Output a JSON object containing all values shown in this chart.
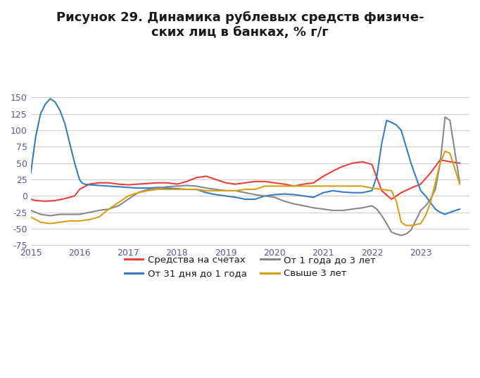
{
  "title": "Рисунок 29. Динамика рублевых средств физиче-\nских лиц в банках, % г/г",
  "ylim": [
    -75,
    150
  ],
  "yticks": [
    -75,
    -50,
    -25,
    0,
    25,
    50,
    75,
    100,
    125,
    150
  ],
  "xlim": [
    2015.0,
    2024.0
  ],
  "xticks": [
    2015,
    2016,
    2017,
    2018,
    2019,
    2020,
    2021,
    2022,
    2023
  ],
  "background_color": "#ffffff",
  "grid_color": "#cccccc",
  "series": {
    "accounts": {
      "label": "Средства на счетах",
      "color": "#e8403a",
      "x": [
        2015.0,
        2015.1,
        2015.3,
        2015.5,
        2015.7,
        2015.9,
        2016.0,
        2016.2,
        2016.4,
        2016.6,
        2016.8,
        2017.0,
        2017.2,
        2017.4,
        2017.6,
        2017.8,
        2018.0,
        2018.2,
        2018.4,
        2018.6,
        2018.8,
        2019.0,
        2019.2,
        2019.4,
        2019.6,
        2019.8,
        2020.0,
        2020.2,
        2020.4,
        2020.6,
        2020.8,
        2021.0,
        2021.2,
        2021.4,
        2021.6,
        2021.8,
        2022.0,
        2022.2,
        2022.4,
        2022.6,
        2022.8,
        2023.0,
        2023.2,
        2023.4,
        2023.6,
        2023.8
      ],
      "y": [
        -5,
        -7,
        -8,
        -7,
        -4,
        0,
        10,
        18,
        20,
        20,
        18,
        17,
        18,
        19,
        20,
        20,
        18,
        22,
        28,
        30,
        25,
        20,
        18,
        20,
        22,
        22,
        20,
        18,
        15,
        18,
        20,
        30,
        38,
        45,
        50,
        52,
        48,
        8,
        -5,
        5,
        12,
        18,
        35,
        55,
        52,
        50
      ]
    },
    "short": {
      "label": "От 31 дня до 1 года",
      "color": "#3a7abf",
      "x": [
        2015.0,
        2015.1,
        2015.2,
        2015.3,
        2015.4,
        2015.5,
        2015.6,
        2015.7,
        2015.8,
        2015.9,
        2016.0,
        2016.05,
        2016.1,
        2016.2,
        2016.4,
        2016.6,
        2016.8,
        2017.0,
        2017.2,
        2017.4,
        2017.6,
        2017.8,
        2018.0,
        2018.2,
        2018.4,
        2018.6,
        2018.8,
        2019.0,
        2019.2,
        2019.4,
        2019.6,
        2019.8,
        2020.0,
        2020.2,
        2020.4,
        2020.6,
        2020.8,
        2021.0,
        2021.2,
        2021.4,
        2021.6,
        2021.8,
        2022.0,
        2022.1,
        2022.2,
        2022.3,
        2022.4,
        2022.5,
        2022.6,
        2022.8,
        2023.0,
        2023.1,
        2023.2,
        2023.3,
        2023.4,
        2023.5,
        2023.6,
        2023.8
      ],
      "y": [
        35,
        90,
        125,
        140,
        148,
        143,
        130,
        110,
        80,
        50,
        25,
        20,
        18,
        17,
        16,
        15,
        14,
        13,
        12,
        12,
        13,
        12,
        11,
        10,
        10,
        5,
        2,
        0,
        -2,
        -5,
        -5,
        0,
        2,
        3,
        2,
        0,
        -2,
        5,
        8,
        6,
        5,
        5,
        8,
        30,
        80,
        115,
        112,
        108,
        100,
        50,
        8,
        0,
        -10,
        -20,
        -25,
        -28,
        -25,
        -20
      ]
    },
    "medium": {
      "label": "От 1 года до 3 лет",
      "color": "#888888",
      "x": [
        2015.0,
        2015.2,
        2015.4,
        2015.6,
        2015.8,
        2016.0,
        2016.2,
        2016.4,
        2016.6,
        2016.8,
        2017.0,
        2017.2,
        2017.4,
        2017.6,
        2017.8,
        2018.0,
        2018.2,
        2018.4,
        2018.6,
        2018.8,
        2019.0,
        2019.2,
        2019.4,
        2019.6,
        2019.8,
        2020.0,
        2020.2,
        2020.4,
        2020.6,
        2020.8,
        2021.0,
        2021.2,
        2021.4,
        2021.6,
        2021.8,
        2022.0,
        2022.1,
        2022.2,
        2022.3,
        2022.4,
        2022.5,
        2022.6,
        2022.7,
        2022.8,
        2023.0,
        2023.1,
        2023.2,
        2023.3,
        2023.4,
        2023.5,
        2023.6,
        2023.8
      ],
      "y": [
        -22,
        -28,
        -30,
        -28,
        -28,
        -28,
        -25,
        -22,
        -20,
        -15,
        -5,
        5,
        10,
        12,
        14,
        15,
        16,
        15,
        12,
        10,
        8,
        8,
        5,
        2,
        0,
        -2,
        -8,
        -12,
        -15,
        -18,
        -20,
        -22,
        -22,
        -20,
        -18,
        -15,
        -20,
        -30,
        -42,
        -55,
        -58,
        -60,
        -58,
        -52,
        -22,
        -15,
        -5,
        10,
        50,
        120,
        115,
        20
      ]
    },
    "long": {
      "label": "Свыше 3 лет",
      "color": "#d4a017",
      "x": [
        2015.0,
        2015.2,
        2015.4,
        2015.6,
        2015.8,
        2016.0,
        2016.2,
        2016.4,
        2016.6,
        2016.8,
        2017.0,
        2017.2,
        2017.4,
        2017.6,
        2017.8,
        2018.0,
        2018.2,
        2018.4,
        2018.6,
        2018.8,
        2019.0,
        2019.2,
        2019.4,
        2019.6,
        2019.8,
        2020.0,
        2020.2,
        2020.4,
        2020.6,
        2020.8,
        2021.0,
        2021.2,
        2021.4,
        2021.6,
        2021.8,
        2022.0,
        2022.2,
        2022.4,
        2022.5,
        2022.6,
        2022.7,
        2022.8,
        2023.0,
        2023.1,
        2023.2,
        2023.3,
        2023.4,
        2023.5,
        2023.6,
        2023.8
      ],
      "y": [
        -32,
        -40,
        -42,
        -40,
        -38,
        -38,
        -36,
        -32,
        -20,
        -10,
        0,
        5,
        8,
        10,
        10,
        10,
        10,
        10,
        8,
        8,
        8,
        8,
        10,
        10,
        15,
        15,
        15,
        15,
        15,
        15,
        15,
        15,
        15,
        15,
        15,
        12,
        10,
        8,
        -8,
        -40,
        -45,
        -45,
        -42,
        -30,
        -10,
        20,
        50,
        68,
        65,
        18
      ]
    }
  },
  "legend": [
    {
      "label": "Средства на счетах",
      "color": "#e8403a"
    },
    {
      "label": "От 31 дня до 1 года",
      "color": "#3a7abf"
    },
    {
      "label": "От 1 года до 3 лет",
      "color": "#888888"
    },
    {
      "label": "Свыше 3 лет",
      "color": "#d4a017"
    }
  ]
}
